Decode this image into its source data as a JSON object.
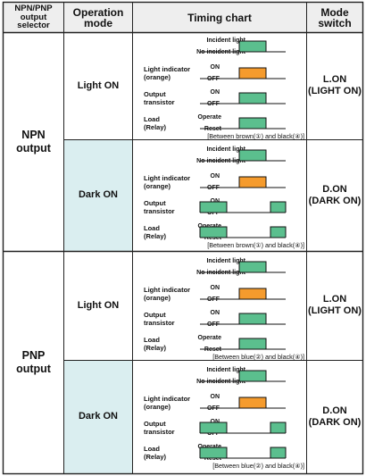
{
  "header": {
    "selector": "NPN/PNP output selector",
    "operation_mode": "Operation mode",
    "timing_chart": "Timing chart",
    "mode_switch": "Mode switch"
  },
  "signals": {
    "incident": "Incident light",
    "no_incident": "No incident light",
    "indicator_l1": "Light indicator",
    "indicator_l2": "(orange)",
    "on": "ON",
    "off": "OFF",
    "output_l1": "Output",
    "output_l2": "transistor",
    "load_l1": "Load",
    "load_l2": "(Relay)",
    "operate": "Operate",
    "reset": "Reset"
  },
  "colors": {
    "green": "#5bbf8e",
    "orange": "#f59b2d",
    "dark_on_bg": "#daeef0",
    "header_bg": "#eeeeee"
  },
  "groups": [
    {
      "output": "NPN output",
      "rows": [
        {
          "mode": "Light ON",
          "switch_l1": "L.ON",
          "switch_l2": "(LIGHT ON)",
          "caption": "[Between brown(①) and black(④)]"
        },
        {
          "mode": "Dark ON",
          "switch_l1": "D.ON",
          "switch_l2": "(DARK ON)",
          "caption": "[Between brown(①) and black(④)]"
        }
      ]
    },
    {
      "output": "PNP output",
      "rows": [
        {
          "mode": "Light ON",
          "switch_l1": "L.ON",
          "switch_l2": "(LIGHT ON)",
          "caption": "[Between blue(②) and black(④)]"
        },
        {
          "mode": "Dark ON",
          "switch_l1": "D.ON",
          "switch_l2": "(DARK ON)",
          "caption": "[Between blue(②) and black(④)]"
        }
      ]
    }
  ]
}
